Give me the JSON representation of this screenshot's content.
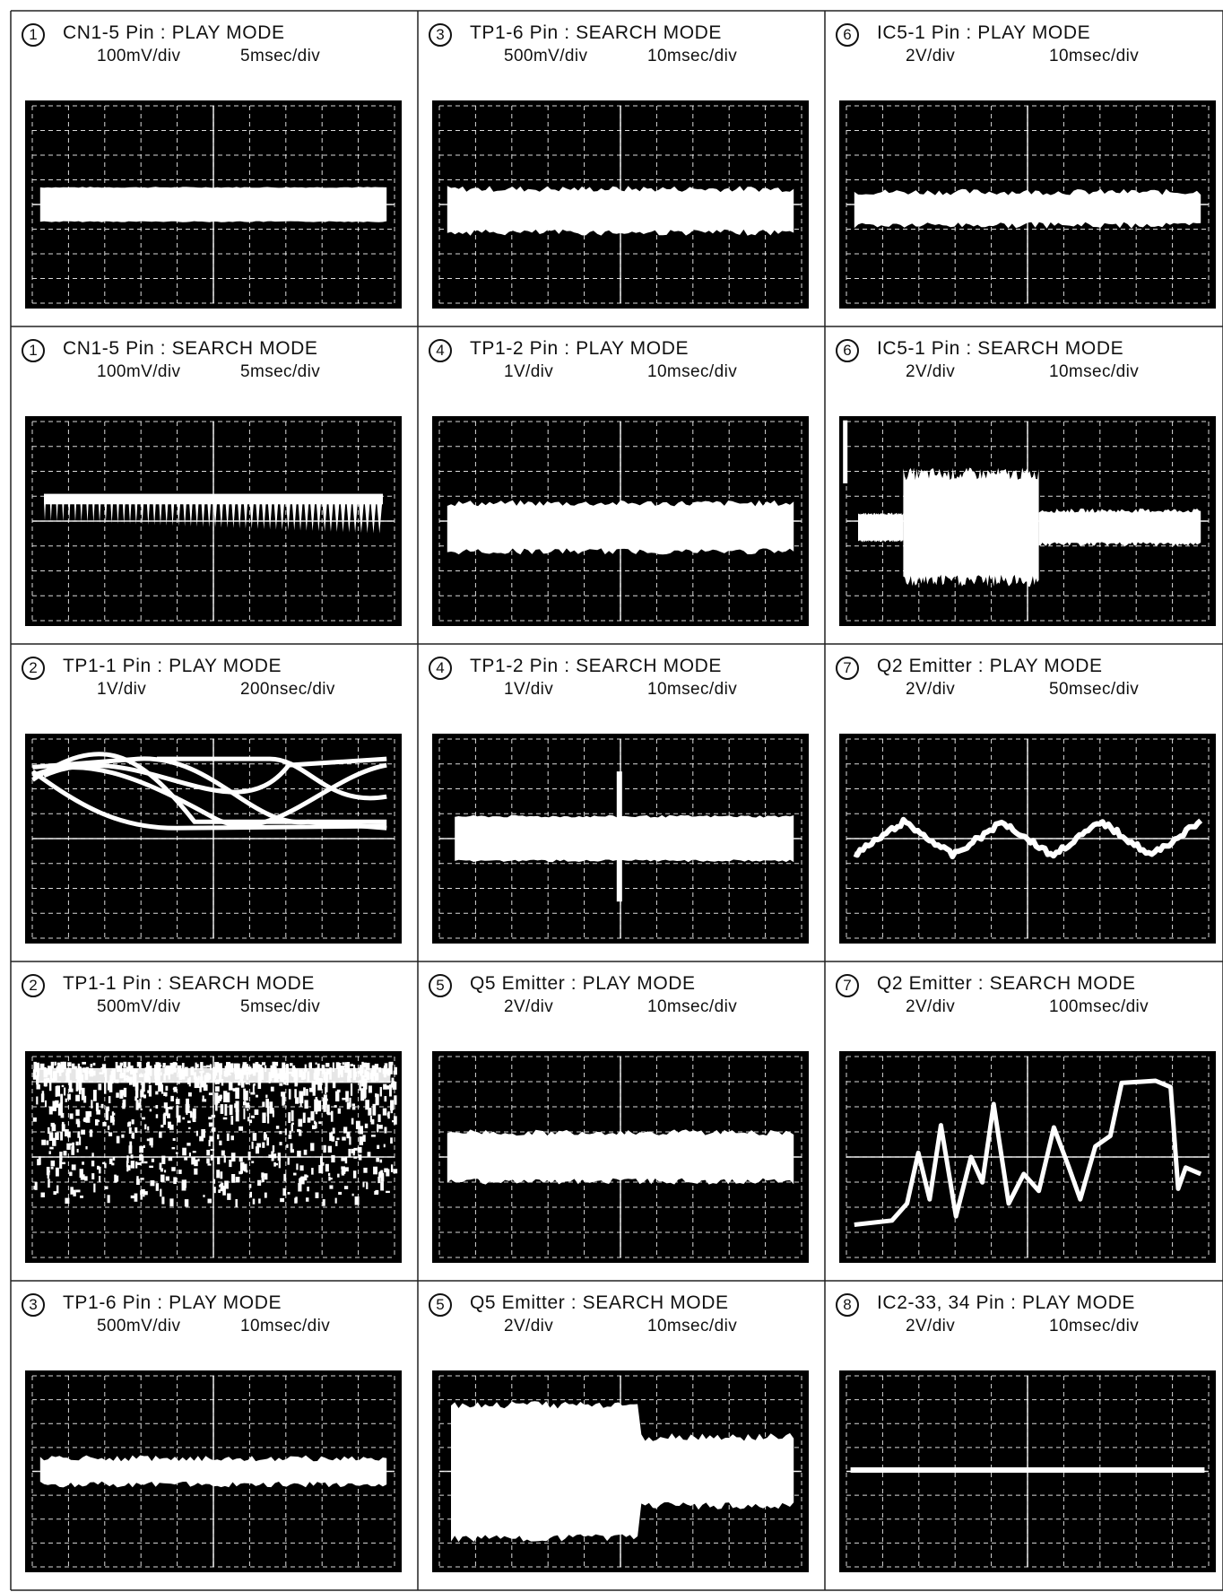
{
  "panels": [
    {
      "number": "1",
      "title": "CN1-5 Pin : PLAY MODE",
      "volts_per_div": "100mV/div",
      "time_per_div": "5msec/div",
      "trace": "flat-band",
      "level": 0.5,
      "amplitude": 0.16
    },
    {
      "number": "3",
      "title": "TP1-6 Pin : SEARCH MODE",
      "volts_per_div": "500mV/div",
      "time_per_div": "10msec/div",
      "trace": "noise-band",
      "level": 0.53,
      "amplitude": 0.18
    },
    {
      "number": "6",
      "title": "IC5-1 Pin : PLAY MODE",
      "volts_per_div": "2V/div",
      "time_per_div": "10msec/div",
      "trace": "noise-band",
      "level": 0.52,
      "amplitude": 0.13
    },
    {
      "number": "1",
      "title": "CN1-5 Pin : SEARCH MODE",
      "volts_per_div": "100mV/div",
      "time_per_div": "5msec/div",
      "trace": "sawtooth-comb",
      "level": 0.47,
      "amplitude": 0.2
    },
    {
      "number": "4",
      "title": "TP1-2 Pin : PLAY MODE",
      "volts_per_div": "1V/div",
      "time_per_div": "10msec/div",
      "trace": "noise-band",
      "level": 0.53,
      "amplitude": 0.2
    },
    {
      "number": "6",
      "title": "IC5-1 Pin : SEARCH MODE",
      "volts_per_div": "2V/div",
      "time_per_div": "10msec/div",
      "trace": "burst",
      "level": 0.53,
      "amplitude": 0.14
    },
    {
      "number": "2",
      "title": "TP1-1 Pin : PLAY MODE",
      "volts_per_div": "1V/div",
      "time_per_div": "200nsec/div",
      "trace": "eye",
      "level": 0.25,
      "amplitude": 0.25
    },
    {
      "number": "4",
      "title": "TP1-2 Pin : SEARCH MODE",
      "volts_per_div": "1V/div",
      "time_per_div": "10msec/div",
      "trace": "band-spike",
      "level": 0.5,
      "amplitude": 0.2
    },
    {
      "number": "7",
      "title": "Q2 Emitter : PLAY MODE",
      "volts_per_div": "2V/div",
      "time_per_div": "50msec/div",
      "trace": "triangle",
      "level": 0.45,
      "amplitude": 0.1
    },
    {
      "number": "2",
      "title": "TP1-1 Pin : SEARCH MODE",
      "volts_per_div": "500mV/div",
      "time_per_div": "5msec/div",
      "trace": "dense-noise",
      "level": 0.25,
      "amplitude": 0.35
    },
    {
      "number": "5",
      "title": "Q5 Emitter : PLAY MODE",
      "volts_per_div": "2V/div",
      "time_per_div": "10msec/div",
      "trace": "noise-band",
      "level": 0.5,
      "amplitude": 0.2
    },
    {
      "number": "7",
      "title": "Q2 Emitter : SEARCH MODE",
      "volts_per_div": "2V/div",
      "time_per_div": "100msec/div",
      "trace": "irregular",
      "level": 0.5,
      "amplitude": 0.3
    },
    {
      "number": "3",
      "title": "TP1-6 Pin : PLAY MODE",
      "volts_per_div": "500mV/div",
      "time_per_div": "10msec/div",
      "trace": "noise-band",
      "level": 0.5,
      "amplitude": 0.1
    },
    {
      "number": "5",
      "title": "Q5 Emitter : SEARCH MODE",
      "volts_per_div": "2V/div",
      "time_per_div": "10msec/div",
      "trace": "envelope",
      "level": 0.5,
      "amplitude": 0.4
    },
    {
      "number": "8",
      "title": "IC2-33, 34 Pin : PLAY MODE",
      "volts_per_div": "2V/div",
      "time_per_div": "10msec/div",
      "trace": "flat-line",
      "level": 0.48,
      "amplitude": 0.02
    }
  ],
  "colors": {
    "screen": "#000000",
    "grid": "#ffffff",
    "trace": "#ffffff",
    "ink": "#111111",
    "rule": "#222222"
  }
}
